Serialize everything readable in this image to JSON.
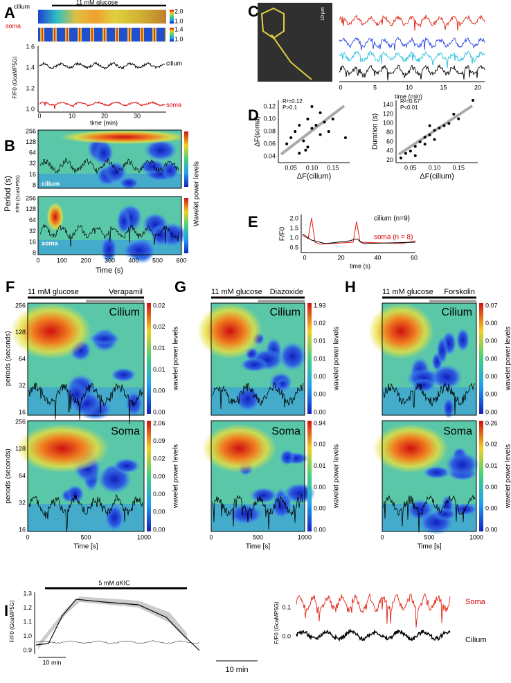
{
  "panels": {
    "A": {
      "label": "A",
      "bar": "11 mM glucose",
      "strip1": "cilium",
      "strip2": "soma",
      "cbar1": [
        "2.0",
        "1.0"
      ],
      "cbar2": [
        "1.4",
        "1.0"
      ],
      "ylabel": "F/F0 (GcaMP5G)",
      "yticks": [
        "1.6",
        "1.4",
        "1.2",
        "1.0"
      ],
      "xticks": [
        "0",
        "10",
        "20",
        "30"
      ],
      "xlabel": "time (min)",
      "trace1": "cilium",
      "trace2": "soma"
    },
    "B": {
      "label": "B",
      "ylabel": "Period (s)",
      "ylabel2": "F/F0 (GcaMP5G)",
      "yticks": [
        "256",
        "128",
        "64",
        "32",
        "16",
        "8"
      ],
      "top": "cilium",
      "bottom": "soma",
      "xticks": [
        "0",
        "100",
        "200",
        "300",
        "400",
        "500",
        "600"
      ],
      "xlabel": "Time (s)",
      "cbar": "Wavelet power levels"
    },
    "C": {
      "label": "C",
      "scale": "10 µm",
      "xticks": [
        "0",
        "5",
        "10",
        "15",
        "20"
      ],
      "xlabel": "time (min)"
    },
    "D": {
      "label": "D",
      "left": {
        "r2": "R²=0.12",
        "p": "P>0.1",
        "ylabel": "ΔF(soma)",
        "xlabel": "ΔF(cilium)",
        "xlim": [
          0.02,
          0.19
        ],
        "ylim": [
          0.03,
          0.13
        ],
        "xticks": [
          {
            "value": 0.05,
            "label": "0.05"
          },
          {
            "value": 0.1,
            "label": "0.10"
          },
          {
            "value": 0.15,
            "label": "0.15"
          }
        ],
        "yticks": [
          {
            "value": 0.04,
            "label": "0.04"
          },
          {
            "value": 0.06,
            "label": "0.06"
          },
          {
            "value": 0.08,
            "label": "0.08"
          },
          {
            "value": 0.1,
            "label": "0.10"
          },
          {
            "value": 0.12,
            "label": "0.12"
          }
        ],
        "x": [
          0.05,
          0.06,
          0.07,
          0.08,
          0.09,
          0.1,
          0.11,
          0.12,
          0.13,
          0.14,
          0.07,
          0.085,
          0.1,
          0.15,
          0.18,
          0.04,
          0.12,
          0.09
        ],
        "y": [
          0.07,
          0.08,
          0.09,
          0.065,
          0.1,
          0.085,
          0.09,
          0.11,
          0.095,
          0.08,
          0.045,
          0.05,
          0.12,
          0.1,
          0.07,
          0.06,
          0.075,
          0.055
        ]
      },
      "right": {
        "r2": "R²=0.57",
        "p": "P<0.01",
        "ylabel": "Duration (s)",
        "xlabel": "ΔF(cilium)",
        "xlim": [
          0.02,
          0.19
        ],
        "ylim": [
          15,
          150
        ],
        "xticks": [
          {
            "value": 0.05,
            "label": "0.05"
          },
          {
            "value": 0.1,
            "label": "0.10"
          },
          {
            "value": 0.15,
            "label": "0.15"
          }
        ],
        "yticks": [
          20,
          40,
          60,
          80,
          100,
          120,
          140
        ],
        "x": [
          0.03,
          0.04,
          0.05,
          0.06,
          0.07,
          0.08,
          0.09,
          0.1,
          0.11,
          0.12,
          0.13,
          0.15,
          0.18,
          0.08,
          0.1,
          0.06,
          0.14,
          0.09
        ],
        "y": [
          25,
          35,
          40,
          50,
          60,
          70,
          75,
          85,
          90,
          95,
          100,
          110,
          150,
          55,
          65,
          30,
          120,
          95
        ]
      }
    },
    "E": {
      "label": "E",
      "ylabel": "F/F0",
      "yticks": [
        "2.0",
        "1.5",
        "1.0",
        "0.5"
      ],
      "xticks": [
        "0",
        "20",
        "40",
        "60"
      ],
      "xlabel": "time (s)",
      "legend": [
        "cilium (n=9)",
        "soma (n = 8)"
      ]
    },
    "F": {
      "label": "F",
      "bar": "11 mM glucose",
      "drug": "Verapamil",
      "top": "Cilium",
      "bottom": "Soma",
      "ylabel": "periods (seconds)",
      "yticks": [
        "256",
        "128",
        "64",
        "32",
        "16"
      ],
      "xticks": [
        "0",
        "500",
        "1000"
      ],
      "xlabel": "Time [s]",
      "cbar": "wavelet power levels",
      "cbar_top": [
        "0.02",
        "0.02",
        "0.01",
        "0.01",
        "0.00",
        "0.00"
      ],
      "cbar_bottom": [
        "2.06",
        "0.09",
        "0.02",
        "0.00",
        "0.00",
        "0.00",
        "0.00"
      ]
    },
    "G": {
      "label": "G",
      "bar": "11 mM glucose",
      "drug": "Diazoxide",
      "top": "Cilium",
      "bottom": "Soma",
      "xticks": [
        "0",
        "500",
        "1000"
      ],
      "xlabel": "Time [s]",
      "cbar": "wavelet power levels",
      "cbar_top": [
        "1.93",
        "0.02",
        "0.01",
        "0.01",
        "0.00",
        "0.00",
        "0.00"
      ],
      "cbar_bottom": [
        "0.94",
        "0.02",
        "0.01",
        "0.00",
        "0.00",
        "0.00"
      ]
    },
    "H": {
      "label": "H",
      "bar": "11 mM glucose",
      "drug": "Forskolin",
      "top": "Cilium",
      "bottom": "Soma",
      "xticks": [
        "0",
        "500",
        "1000"
      ],
      "xlabel": "Time [s]",
      "cbar": "wavelet power levels",
      "cbar_top": [
        "0.07",
        "0.00",
        "0.00",
        "0.00",
        "0.00",
        "0.00",
        "0.00"
      ],
      "cbar_bottom": [
        "0.26",
        "0.02",
        "0.01",
        "0.00",
        "0.00",
        "0.00"
      ]
    },
    "I": {
      "label": "I",
      "bar": "5 mM αKIC",
      "ylabel": "F/F0 (GcaMP5G)",
      "yticks": [
        "1.3",
        "1.2",
        "1.1",
        "1.0",
        "0.9"
      ],
      "scale1": "10 min",
      "ylabel2": "F/F0 (GcaMP5G)",
      "rticks": [
        "0.1",
        "0.0"
      ],
      "soma": "Soma",
      "cilium": "Cilium",
      "scale2": "10 min"
    }
  }
}
